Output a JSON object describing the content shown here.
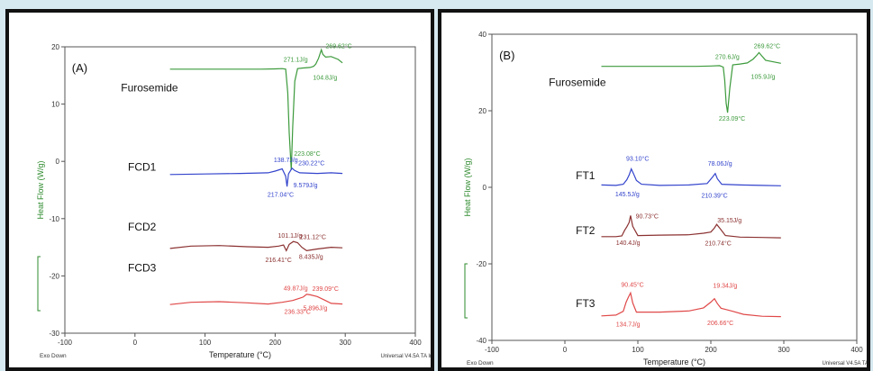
{
  "chart_data": [
    {
      "type": "line",
      "panel_label": "(A)",
      "xlabel": "Temperature (°C)",
      "ylabel": "Heat Flow (W/g)",
      "xlim": [
        -100,
        400
      ],
      "ylim": [
        -30,
        20
      ],
      "xticks": [
        "-100",
        "0",
        "100",
        "200",
        "300",
        "400"
      ],
      "yticks": [
        "20",
        "10",
        "0",
        "-10",
        "-20",
        "-30"
      ],
      "footer_left": "Exo Down",
      "footer_right": "Universal V4.5A TA Instr",
      "series": [
        {
          "name": "Furosemide",
          "color": "#3c9a3c",
          "label_xy": [
            -20,
            12.2
          ],
          "points": [
            [
              50,
              16.1
            ],
            [
              100,
              16.1
            ],
            [
              150,
              16.1
            ],
            [
              180,
              16.1
            ],
            [
              200,
              16.15
            ],
            [
              210,
              16.2
            ],
            [
              215,
              16.1
            ],
            [
              218,
              12
            ],
            [
              220,
              5
            ],
            [
              223,
              -1.5
            ],
            [
              225,
              6
            ],
            [
              228,
              14
            ],
            [
              232,
              16.2
            ],
            [
              240,
              16.3
            ],
            [
              250,
              16.4
            ],
            [
              255,
              16.6
            ],
            [
              258,
              17
            ],
            [
              262,
              18
            ],
            [
              266,
              19.5
            ],
            [
              268,
              18.7
            ],
            [
              272,
              18.2
            ],
            [
              280,
              18.3
            ],
            [
              290,
              17.8
            ],
            [
              296,
              17.2
            ]
          ],
          "annotations": [
            {
              "text": "271.1J/g",
              "x": 212,
              "y": 17.4
            },
            {
              "text": "104.8J/g",
              "x": 254,
              "y": 14.3
            },
            {
              "text": "269.62°C",
              "x": 272,
              "y": 19.8
            },
            {
              "text": "223.08°C",
              "x": 227,
              "y": 1
            }
          ]
        },
        {
          "name": "FCD1",
          "color": "#3344cc",
          "label_xy": [
            -10,
            -1.6
          ],
          "points": [
            [
              50,
              -2.3
            ],
            [
              100,
              -2.2
            ],
            [
              150,
              -2.1
            ],
            [
              190,
              -2.0
            ],
            [
              200,
              -1.7
            ],
            [
              210,
              -1.3
            ],
            [
              215,
              -2.6
            ],
            [
              217,
              -4.4
            ],
            [
              219,
              -2.2
            ],
            [
              224,
              -1.2
            ],
            [
              228,
              -1.6
            ],
            [
              235,
              -2.0
            ],
            [
              260,
              -2.1
            ],
            [
              280,
              -2.0
            ],
            [
              296,
              -2.1
            ]
          ],
          "annotations": [
            {
              "text": "138.7J/g",
              "x": 198,
              "y": -0.1
            },
            {
              "text": "230.22°C",
              "x": 233,
              "y": -0.7
            },
            {
              "text": "9.579J/g",
              "x": 226,
              "y": -4.5
            },
            {
              "text": "217.04°C",
              "x": 189,
              "y": -6.2
            }
          ]
        },
        {
          "name": "FCD2",
          "color": "#8b3030",
          "label_xy": [
            -10,
            -12.1
          ],
          "points": [
            [
              50,
              -15.2
            ],
            [
              80,
              -14.8
            ],
            [
              120,
              -14.7
            ],
            [
              160,
              -14.9
            ],
            [
              190,
              -15.0
            ],
            [
              205,
              -14.8
            ],
            [
              212,
              -14.6
            ],
            [
              216,
              -15.6
            ],
            [
              220,
              -14.5
            ],
            [
              226,
              -14.0
            ],
            [
              232,
              -14.2
            ],
            [
              238,
              -15.0
            ],
            [
              245,
              -15.6
            ],
            [
              260,
              -15.3
            ],
            [
              280,
              -15.0
            ],
            [
              296,
              -15.1
            ]
          ],
          "annotations": [
            {
              "text": "101.1J/g",
              "x": 204,
              "y": -13.3
            },
            {
              "text": "231.12°C",
              "x": 235,
              "y": -13.6
            },
            {
              "text": "216.41°C",
              "x": 186,
              "y": -17.6
            },
            {
              "text": "8.435J/g",
              "x": 234,
              "y": -17.0
            }
          ]
        },
        {
          "name": "FCD3",
          "color": "#e04848",
          "label_xy": [
            -10,
            -19.2
          ],
          "points": [
            [
              50,
              -25.0
            ],
            [
              80,
              -24.6
            ],
            [
              120,
              -24.5
            ],
            [
              160,
              -24.7
            ],
            [
              190,
              -24.9
            ],
            [
              210,
              -24.6
            ],
            [
              225,
              -24.3
            ],
            [
              235,
              -23.9
            ],
            [
              240,
              -23.7
            ],
            [
              245,
              -23.2
            ],
            [
              250,
              -23.3
            ],
            [
              260,
              -23.6
            ],
            [
              270,
              -24.2
            ],
            [
              280,
              -24.8
            ],
            [
              296,
              -24.9
            ]
          ],
          "annotations": [
            {
              "text": "49.87J/g",
              "x": 212,
              "y": -22.5
            },
            {
              "text": "239.09°C",
              "x": 253,
              "y": -22.6
            },
            {
              "text": "236.33°C",
              "x": 213,
              "y": -26.6
            },
            {
              "text": "5.896J/g",
              "x": 240,
              "y": -26.0
            }
          ]
        }
      ]
    },
    {
      "type": "line",
      "panel_label": "(B)",
      "xlabel": "Temperature (°C)",
      "ylabel": "Heat Flow (W/g)",
      "xlim": [
        -100,
        400
      ],
      "ylim": [
        -40,
        40
      ],
      "xticks": [
        "-100",
        "0",
        "100",
        "200",
        "300",
        "400"
      ],
      "yticks": [
        "40",
        "20",
        "0",
        "-20",
        "-40"
      ],
      "footer_left": "Exo Down",
      "footer_right": "Universal V4.5A TA Instr",
      "series": [
        {
          "name": "Furosemide",
          "color": "#3c9a3c",
          "label_xy": [
            -22,
            26.5
          ],
          "points": [
            [
              50,
              31.6
            ],
            [
              100,
              31.6
            ],
            [
              150,
              31.6
            ],
            [
              180,
              31.6
            ],
            [
              200,
              31.7
            ],
            [
              212,
              31.8
            ],
            [
              217,
              31.4
            ],
            [
              219,
              28
            ],
            [
              221,
              22
            ],
            [
              223,
              19.5
            ],
            [
              226,
              26
            ],
            [
              230,
              32
            ],
            [
              240,
              32.2
            ],
            [
              250,
              32.5
            ],
            [
              258,
              33.5
            ],
            [
              263,
              34.5
            ],
            [
              266,
              35.2
            ],
            [
              270,
              34.3
            ],
            [
              275,
              33.2
            ],
            [
              285,
              32.8
            ],
            [
              296,
              32.4
            ]
          ],
          "annotations": [
            {
              "text": "270.6J/g",
              "x": 206,
              "y": 33.5
            },
            {
              "text": "269.62°C",
              "x": 259,
              "y": 36.4
            },
            {
              "text": "105.9J/g",
              "x": 255,
              "y": 28.4
            },
            {
              "text": "223.09°C",
              "x": 211,
              "y": 17.4
            }
          ]
        },
        {
          "name": "FT1",
          "color": "#3344cc",
          "label_xy": [
            15,
            2.1
          ],
          "points": [
            [
              50,
              0.6
            ],
            [
              70,
              0.5
            ],
            [
              80,
              0.8
            ],
            [
              85,
              2.0
            ],
            [
              88,
              3.2
            ],
            [
              91,
              4.8
            ],
            [
              94,
              3.6
            ],
            [
              98,
              1.8
            ],
            [
              105,
              0.8
            ],
            [
              130,
              0.5
            ],
            [
              170,
              0.6
            ],
            [
              195,
              1.0
            ],
            [
              202,
              2.6
            ],
            [
              206,
              3.6
            ],
            [
              209,
              2.2
            ],
            [
              215,
              0.8
            ],
            [
              240,
              0.6
            ],
            [
              270,
              0.5
            ],
            [
              296,
              0.4
            ]
          ],
          "annotations": [
            {
              "text": "93.10°C",
              "x": 84,
              "y": 7.0
            },
            {
              "text": "78.06J/g",
              "x": 196,
              "y": 5.7
            },
            {
              "text": "145.5J/g",
              "x": 69,
              "y": -2.3
            },
            {
              "text": "210.39°C",
              "x": 187,
              "y": -2.7
            }
          ]
        },
        {
          "name": "FT2",
          "color": "#8b3030",
          "label_xy": [
            15,
            -12.2
          ],
          "points": [
            [
              50,
              -12.9
            ],
            [
              70,
              -12.9
            ],
            [
              78,
              -12.7
            ],
            [
              82,
              -11.2
            ],
            [
              85,
              -10.3
            ],
            [
              88,
              -9.2
            ],
            [
              90,
              -7.4
            ],
            [
              93,
              -10.2
            ],
            [
              100,
              -12.6
            ],
            [
              130,
              -12.5
            ],
            [
              170,
              -12.4
            ],
            [
              190,
              -12.0
            ],
            [
              200,
              -11.7
            ],
            [
              205,
              -10.6
            ],
            [
              208,
              -9.7
            ],
            [
              212,
              -10.6
            ],
            [
              220,
              -12.6
            ],
            [
              240,
              -13.0
            ],
            [
              270,
              -13.1
            ],
            [
              296,
              -13.2
            ]
          ],
          "annotations": [
            {
              "text": "90.73°C",
              "x": 97,
              "y": -8.1
            },
            {
              "text": "35.15J/g",
              "x": 209,
              "y": -9.2
            },
            {
              "text": "140.4J/g",
              "x": 70,
              "y": -15.0
            },
            {
              "text": "210.74°C",
              "x": 192,
              "y": -15.2
            }
          ]
        },
        {
          "name": "FT3",
          "color": "#e04848",
          "label_xy": [
            15,
            -31.3
          ],
          "points": [
            [
              50,
              -33.6
            ],
            [
              70,
              -33.4
            ],
            [
              80,
              -32.4
            ],
            [
              84,
              -30.0
            ],
            [
              87,
              -28.7
            ],
            [
              90,
              -27.6
            ],
            [
              93,
              -30.2
            ],
            [
              98,
              -32.6
            ],
            [
              130,
              -32.6
            ],
            [
              170,
              -32.3
            ],
            [
              190,
              -31.5
            ],
            [
              200,
              -30.0
            ],
            [
              205,
              -29.1
            ],
            [
              209,
              -30.4
            ],
            [
              214,
              -31.6
            ],
            [
              220,
              -31.9
            ],
            [
              230,
              -32.4
            ],
            [
              245,
              -33.2
            ],
            [
              270,
              -33.7
            ],
            [
              296,
              -33.8
            ]
          ],
          "annotations": [
            {
              "text": "90.45°C",
              "x": 77,
              "y": -26.0
            },
            {
              "text": "19.34J/g",
              "x": 203,
              "y": -26.2
            },
            {
              "text": "134.7J/g",
              "x": 70,
              "y": -36.4
            },
            {
              "text": "206.66°C",
              "x": 195,
              "y": -36.0
            }
          ]
        }
      ]
    }
  ]
}
